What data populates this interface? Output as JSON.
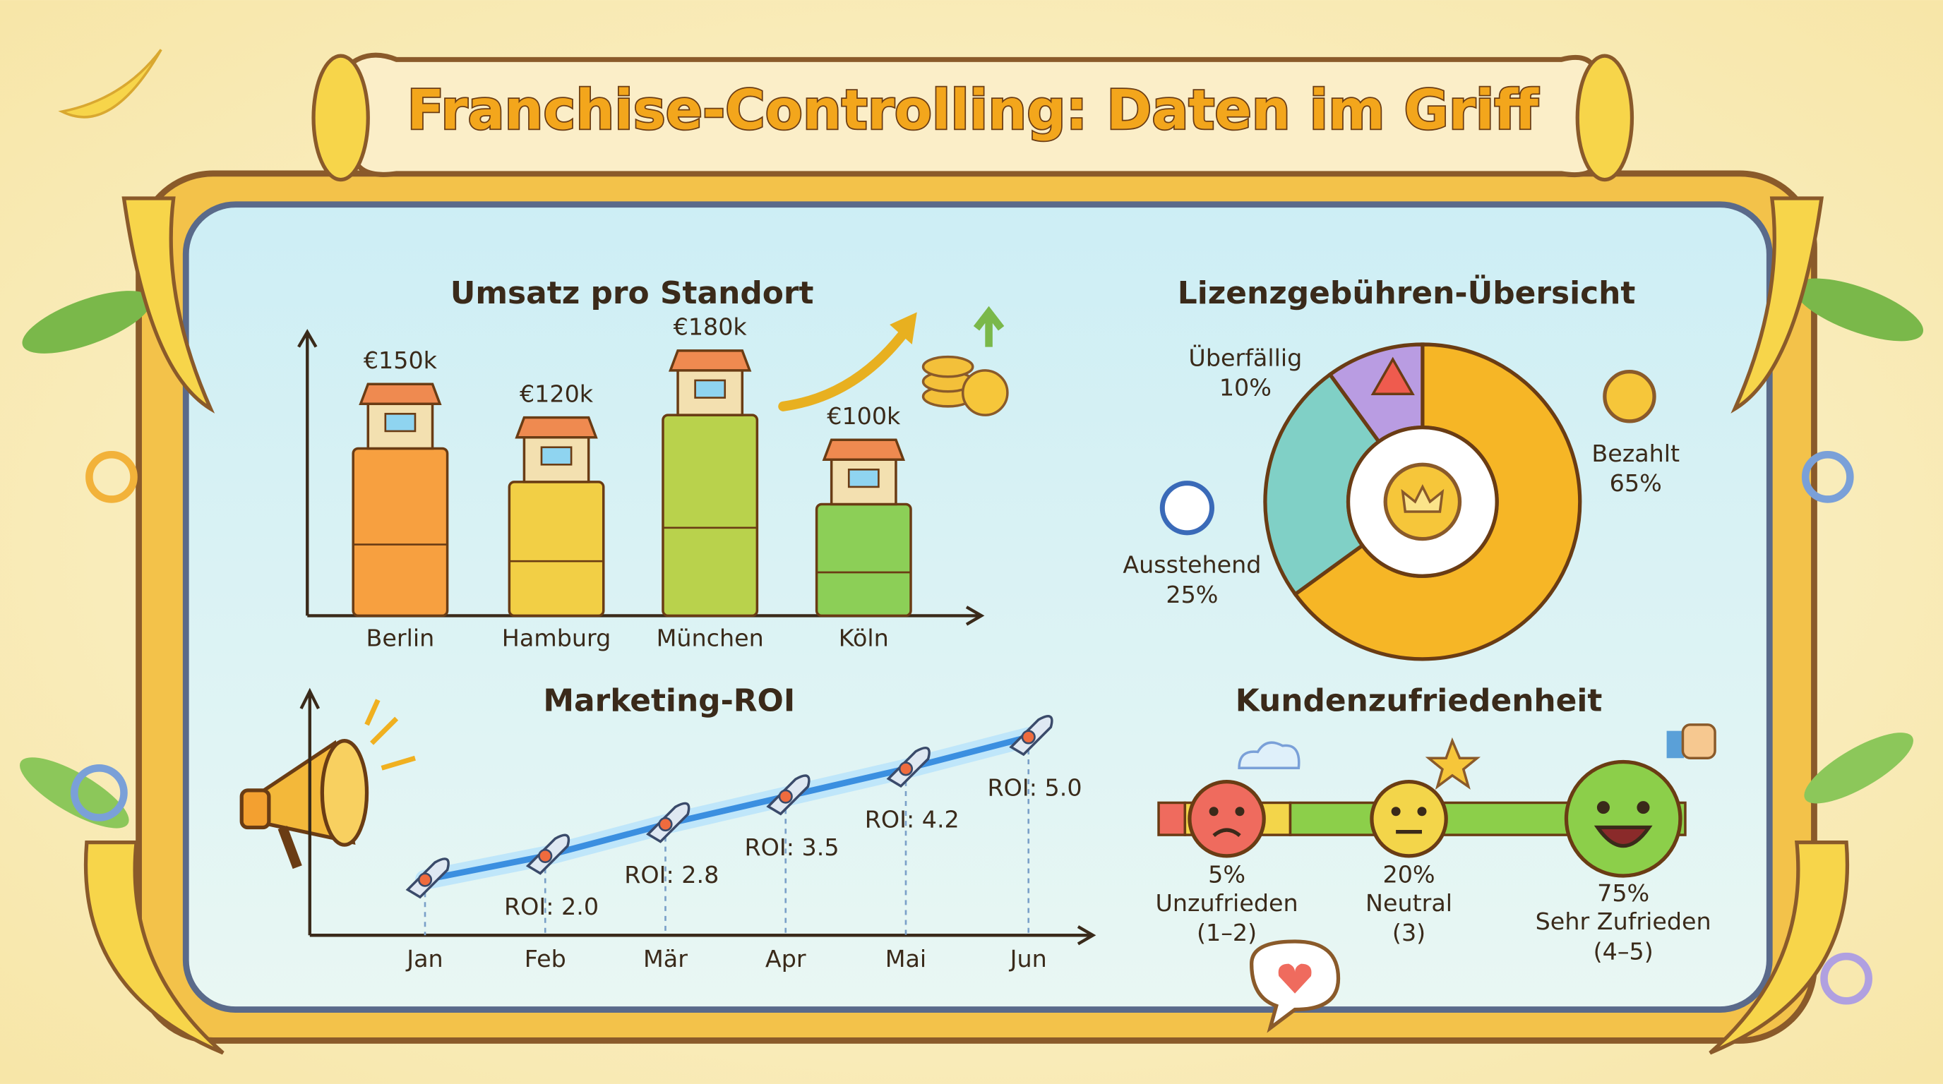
{
  "title": "Franchise-Controlling: Daten im Griff",
  "chart_data": [
    {
      "type": "bar",
      "title": "Umsatz pro Standort",
      "categories": [
        "Berlin",
        "Hamburg",
        "München",
        "Köln"
      ],
      "values": [
        150,
        120,
        180,
        100
      ],
      "value_labels": [
        "€150k",
        "€120k",
        "€180k",
        "€100k"
      ],
      "colors": [
        "#f7a040",
        "#f2cf45",
        "#b9d24c",
        "#8ccf57"
      ],
      "ylim": [
        0,
        200
      ]
    },
    {
      "type": "line",
      "title": "Marketing-ROI",
      "categories": [
        "Jan",
        "Feb",
        "Mär",
        "Apr",
        "Mai",
        "Jun"
      ],
      "values": [
        1.4,
        2.0,
        2.8,
        3.5,
        4.2,
        5.0
      ],
      "value_labels": [
        null,
        "ROI: 2.0",
        "ROI: 2.8",
        "ROI: 3.5",
        "ROI: 4.2",
        "ROI: 5.0"
      ],
      "color": "#3b8fe0",
      "ylim": [
        0,
        6
      ]
    },
    {
      "type": "pie",
      "title": "Lizenzgebühren-Übersicht",
      "categories": [
        "Bezahlt",
        "Ausstehend",
        "Überfällig"
      ],
      "values": [
        65,
        25,
        10
      ],
      "value_labels": [
        "65%",
        "25%",
        "10%"
      ],
      "colors": [
        "#f6b626",
        "#80d0c6",
        "#b99ce2"
      ]
    },
    {
      "type": "rating",
      "title": "Kundenzufriedenheit",
      "categories": [
        "Unzufrieden",
        "Neutral",
        "Sehr Zufrieden"
      ],
      "scale_labels": [
        "(1–2)",
        "(3)",
        "(4–5)"
      ],
      "values": [
        5,
        20,
        75
      ],
      "value_labels": [
        "5%",
        "20%",
        "75%"
      ],
      "colors": [
        "#ef6b5e",
        "#f3d54a",
        "#8ccf4a"
      ]
    }
  ]
}
